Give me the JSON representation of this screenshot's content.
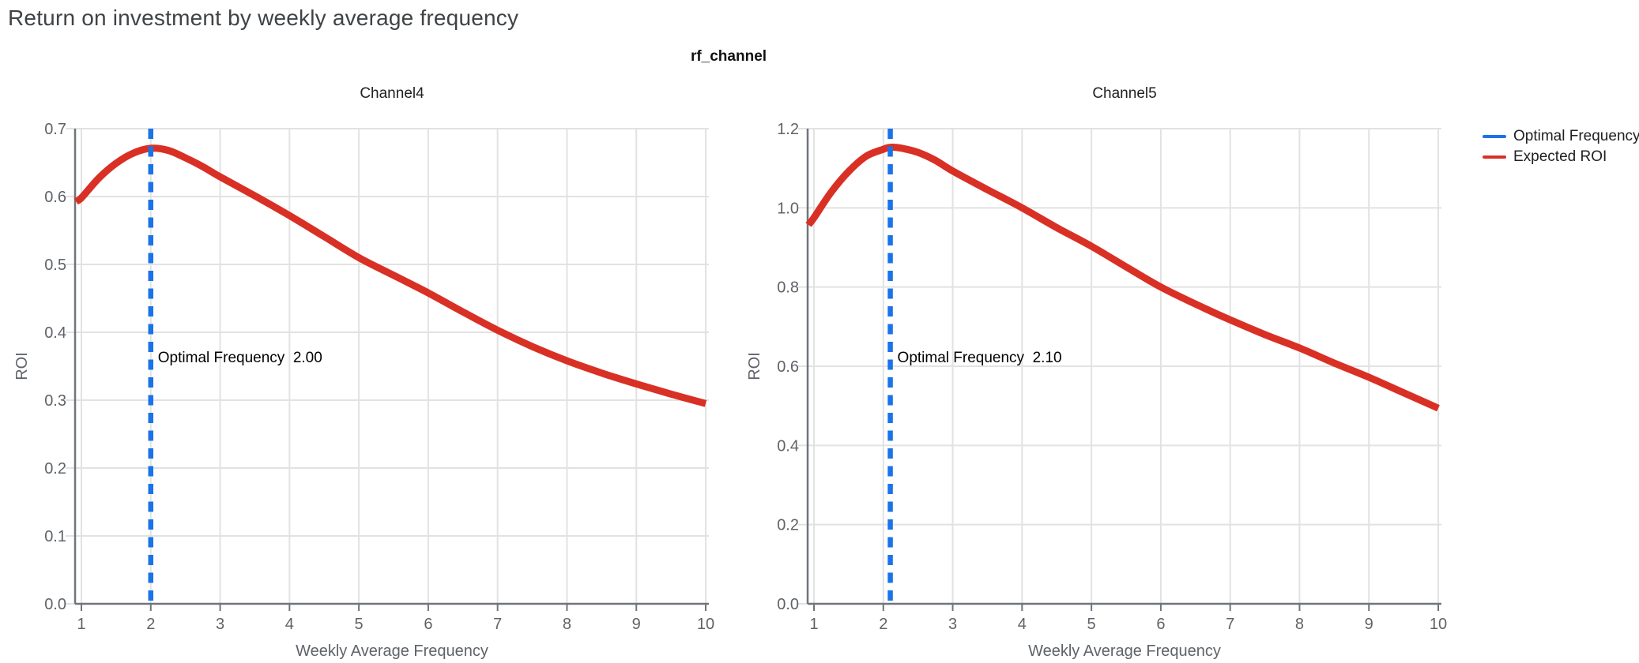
{
  "title": "Return on investment by weekly average frequency",
  "facet_strip_title": "rf_channel",
  "legend": {
    "items": [
      {
        "label": "Optimal Frequency",
        "color": "#1a73e8"
      },
      {
        "label": "Expected ROI",
        "color": "#d93025"
      }
    ]
  },
  "colors": {
    "expected_roi": "#d93025",
    "optimal_frequency": "#1a73e8",
    "gridline": "#e2e2e2",
    "axis": "#70757a",
    "tick_label": "#5f6368",
    "axis_title": "#5f6368",
    "facet_title": "#202124",
    "page_title": "#3f4346",
    "annotation": "#000000"
  },
  "chart_data": [
    {
      "type": "line",
      "facet": "Channel4",
      "xlabel": "Weekly Average Frequency",
      "ylabel": "ROI",
      "xlim": [
        0.92,
        10.05
      ],
      "ylim": [
        0,
        0.7
      ],
      "xticks": [
        1,
        2,
        3,
        4,
        5,
        6,
        7,
        8,
        9,
        10
      ],
      "ytick_labels": [
        "0.0",
        "0.1",
        "0.2",
        "0.3",
        "0.4",
        "0.5",
        "0.6",
        "0.7"
      ],
      "grid": true,
      "optimal_frequency": 2.0,
      "annotation": "Optimal Frequency  2.00",
      "vline": {
        "name": "Optimal Frequency",
        "x": 2.0
      },
      "series": [
        {
          "name": "Expected ROI",
          "x": [
            0.92,
            1,
            1.25,
            1.5,
            1.75,
            2,
            2.25,
            2.5,
            2.75,
            3,
            3.5,
            4,
            4.5,
            5,
            5.5,
            6,
            6.5,
            7,
            7.5,
            8,
            8.5,
            9,
            9.5,
            10
          ],
          "y": [
            0.593,
            0.598,
            0.627,
            0.649,
            0.664,
            0.671,
            0.668,
            0.657,
            0.644,
            0.629,
            0.601,
            0.572,
            0.541,
            0.51,
            0.484,
            0.458,
            0.43,
            0.403,
            0.379,
            0.358,
            0.34,
            0.324,
            0.309,
            0.295
          ]
        }
      ]
    },
    {
      "type": "line",
      "facet": "Channel5",
      "xlabel": "Weekly Average Frequency",
      "ylabel": "ROI",
      "xlim": [
        0.92,
        10.05
      ],
      "ylim": [
        0,
        1.2
      ],
      "xticks": [
        1,
        2,
        3,
        4,
        5,
        6,
        7,
        8,
        9,
        10
      ],
      "ytick_labels": [
        "0.0",
        "0.2",
        "0.4",
        "0.6",
        "0.8",
        "1.0",
        "1.2"
      ],
      "grid": true,
      "optimal_frequency": 2.1,
      "annotation": "Optimal Frequency  2.10",
      "vline": {
        "name": "Optimal Frequency",
        "x": 2.1
      },
      "series": [
        {
          "name": "Expected ROI",
          "x": [
            0.92,
            1,
            1.25,
            1.5,
            1.75,
            2,
            2.1,
            2.25,
            2.5,
            2.75,
            3,
            3.5,
            4,
            4.5,
            5,
            5.5,
            6,
            6.5,
            7,
            7.5,
            8,
            8.5,
            9,
            9.5,
            10
          ],
          "y": [
            0.957,
            0.975,
            1.04,
            1.092,
            1.13,
            1.148,
            1.153,
            1.151,
            1.14,
            1.12,
            1.093,
            1.046,
            1.0,
            0.95,
            0.903,
            0.851,
            0.8,
            0.757,
            0.717,
            0.68,
            0.646,
            0.608,
            0.572,
            0.533,
            0.494
          ]
        }
      ]
    }
  ]
}
